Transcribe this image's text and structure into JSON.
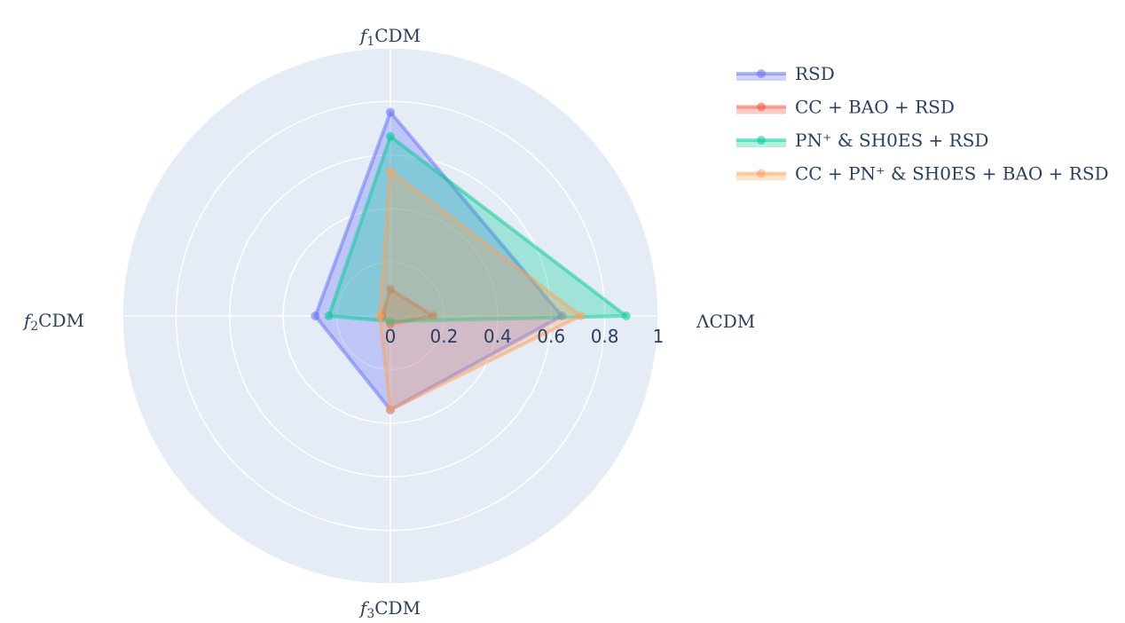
{
  "chart_data": {
    "type": "radar",
    "axes": [
      "ΛCDM",
      "f1CDM",
      "f2CDM",
      "f3CDM"
    ],
    "radial_range": [
      0,
      1
    ],
    "radial_ticks": [
      "0",
      "0.2",
      "0.4",
      "0.6",
      "0.8",
      "1"
    ],
    "radial_tick_values": [
      0,
      0.2,
      0.4,
      0.6,
      0.8,
      1
    ],
    "grid": true,
    "legend_position": "top-right",
    "series": [
      {
        "name": "RSD",
        "values": [
          0.64,
          0.76,
          0.28,
          0.35
        ],
        "color": "#636efa"
      },
      {
        "name": "CC + BAO + RSD",
        "values": [
          0.16,
          0.1,
          0.03,
          0.03
        ],
        "color": "#ef553b"
      },
      {
        "name": "PN⁺ & SH0ES + RSD",
        "values": [
          0.88,
          0.67,
          0.23,
          0.02
        ],
        "color": "#00cc96"
      },
      {
        "name": "CC + PN⁺ & SH0ES + BAO + RSD",
        "values": [
          0.71,
          0.54,
          0.04,
          0.35
        ],
        "color": "#ffa15a"
      }
    ]
  }
}
